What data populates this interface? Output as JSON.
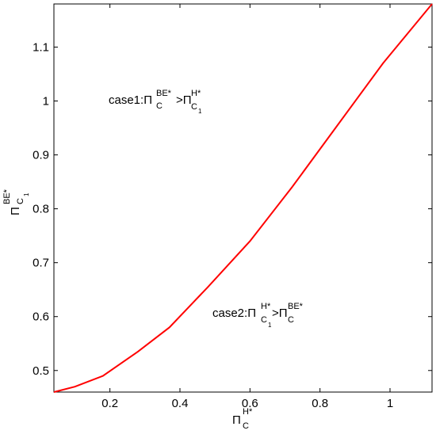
{
  "chart_data": {
    "type": "line",
    "xlabel": [
      "Π",
      "H*",
      "C"
    ],
    "ylabel": [
      "Π",
      "BE*",
      "C",
      "1"
    ],
    "annotations": [
      [
        "case1:Π",
        "BE*",
        "C",
        ">Π",
        "H*",
        "C",
        "1"
      ],
      [
        "case2:Π",
        "H*",
        "C",
        "1",
        ">Π",
        "BE*",
        "C"
      ]
    ],
    "x": [
      0.04,
      0.1,
      0.18,
      0.28,
      0.37,
      0.48,
      0.6,
      0.72,
      0.85,
      0.98,
      1.12
    ],
    "series": [
      {
        "color": "#ff0000",
        "values": [
          0.46,
          0.47,
          0.49,
          0.535,
          0.58,
          0.655,
          0.74,
          0.84,
          0.955,
          1.07,
          1.18
        ]
      }
    ],
    "xlim": [
      0.04,
      1.12
    ],
    "ylim": [
      0.46,
      1.18
    ],
    "xticks": [
      0.2,
      0.4,
      0.6,
      0.8,
      1
    ],
    "yticks": [
      0.5,
      0.6,
      0.7,
      0.8,
      0.9,
      1,
      1.1
    ],
    "grid": false
  }
}
